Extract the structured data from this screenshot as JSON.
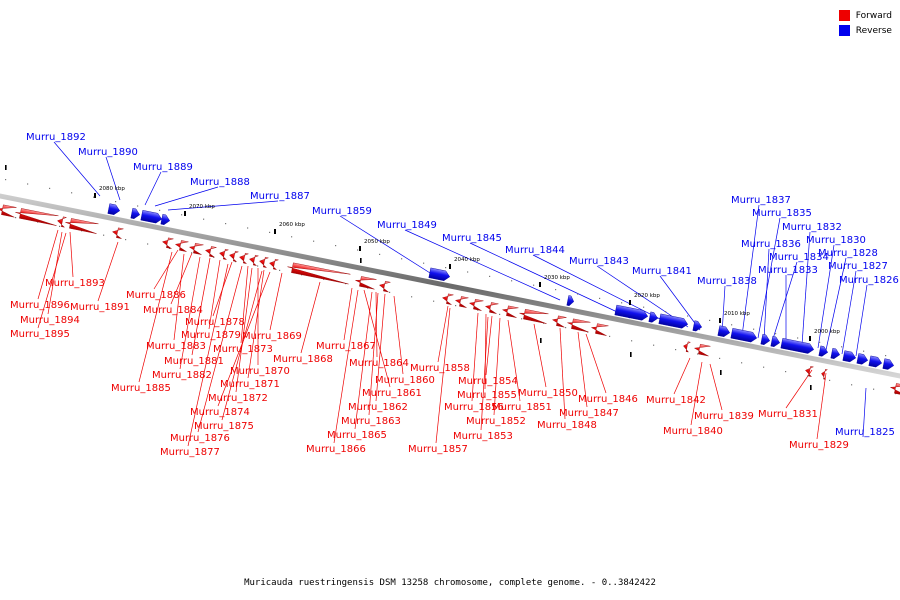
{
  "legend": {
    "forward": {
      "label": "Forward",
      "color": "#ee0000"
    },
    "reverse": {
      "label": "Reverse",
      "color": "#0000ee"
    }
  },
  "caption": "Muricauda ruestringensis DSM 13258 chromosome, complete genome. - 0..3842422",
  "ruler_labels": [
    "2080 kbp",
    "2070 kbp",
    "2060 kbp",
    "2050 kbp",
    "2040 kbp",
    "2030 kbp",
    "2020 kbp",
    "2010 kbp",
    "2000 kbp"
  ],
  "reverse_genes": [
    "Murru_1892",
    "Murru_1890",
    "Murru_1889",
    "Murru_1888",
    "Murru_1887",
    "Murru_1859",
    "Murru_1849",
    "Murru_1845",
    "Murru_1844",
    "Murru_1843",
    "Murru_1841",
    "Murru_1838",
    "Murru_1837",
    "Murru_1835",
    "Murru_1836",
    "Murru_1834",
    "Murru_1833",
    "Murru_1832",
    "Murru_1830",
    "Murru_1828",
    "Murru_1827",
    "Murru_1826",
    "Murru_1825"
  ],
  "forward_genes": [
    "Murru_1893",
    "Murru_1896",
    "Murru_1894",
    "Murru_1895",
    "Murru_1891",
    "Murru_1886",
    "Murru_1884",
    "Murru_1883",
    "Murru_1878",
    "Murru_1879",
    "Murru_1873",
    "Murru_1881",
    "Murru_1882",
    "Murru_1885",
    "Murru_1870",
    "Murru_1871",
    "Murru_1872",
    "Murru_1874",
    "Murru_1875",
    "Murru_1876",
    "Murru_1877",
    "Murru_1869",
    "Murru_1868",
    "Murru_1867",
    "Murru_1864",
    "Murru_1861",
    "Murru_1860",
    "Murru_1862",
    "Murru_1863",
    "Murru_1865",
    "Murru_1866",
    "Murru_1858",
    "Murru_1857",
    "Murru_1854",
    "Murru_1855",
    "Murru_1856",
    "Murru_1852",
    "Murru_1853",
    "Murru_1851",
    "Murru_1850",
    "Murru_1848",
    "Murru_1847",
    "Murru_1846",
    "Murru_1842",
    "Murru_1840",
    "Murru_1839",
    "Murru_1831",
    "Murru_1829"
  ]
}
